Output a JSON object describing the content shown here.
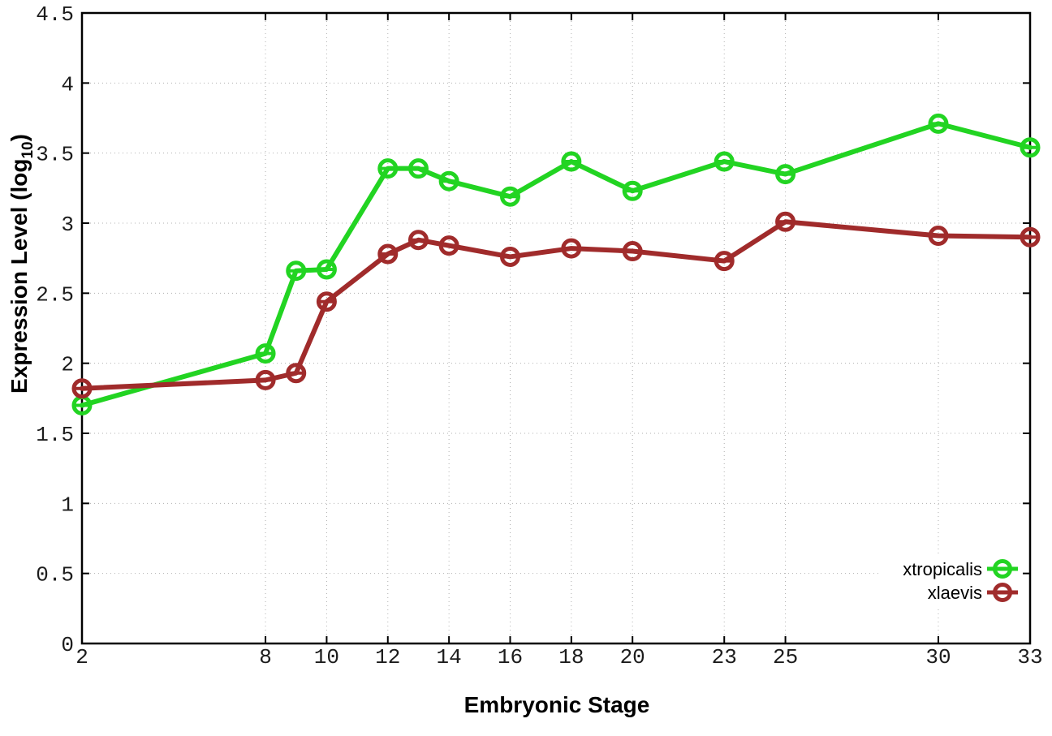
{
  "chart_data": {
    "type": "line",
    "title": "",
    "xlabel": "Embryonic Stage",
    "ylabel_pre": "Expression Level (log",
    "ylabel_sub": "10",
    "ylabel_post": ")",
    "x": [
      2,
      8,
      9,
      10,
      12,
      13,
      14,
      16,
      18,
      20,
      23,
      25,
      30,
      33
    ],
    "series": [
      {
        "name": "xtropicalis",
        "color": "#22d422",
        "values": [
          1.7,
          2.07,
          2.66,
          2.67,
          3.39,
          3.39,
          3.3,
          3.19,
          3.44,
          3.23,
          3.44,
          3.35,
          3.71,
          3.54
        ]
      },
      {
        "name": "xlaevis",
        "color": "#a02b2b",
        "values": [
          1.82,
          1.88,
          1.93,
          2.44,
          2.78,
          2.88,
          2.84,
          2.76,
          2.82,
          2.8,
          2.73,
          3.01,
          2.91,
          2.9
        ]
      }
    ],
    "xlim": [
      2,
      33
    ],
    "ylim": [
      0,
      4.5
    ],
    "xticks": [
      2,
      8,
      10,
      12,
      14,
      16,
      18,
      20,
      23,
      25,
      30,
      33
    ],
    "xtick_labels": [
      "2",
      "8",
      "10",
      "12",
      "14",
      "16",
      "18",
      "20",
      "23",
      "25",
      "30",
      "33"
    ],
    "yticks": [
      0,
      0.5,
      1,
      1.5,
      2,
      2.5,
      3,
      3.5,
      4,
      4.5
    ],
    "ytick_labels": [
      "0",
      "0.5",
      "1",
      "1.5",
      "2",
      "2.5",
      "3",
      "3.5",
      "4",
      "4.5"
    ],
    "grid": true,
    "legend_position": "bottom-right",
    "marker": "open-circle",
    "grid_color": "#b0b0b0",
    "border_color": "#000000"
  }
}
